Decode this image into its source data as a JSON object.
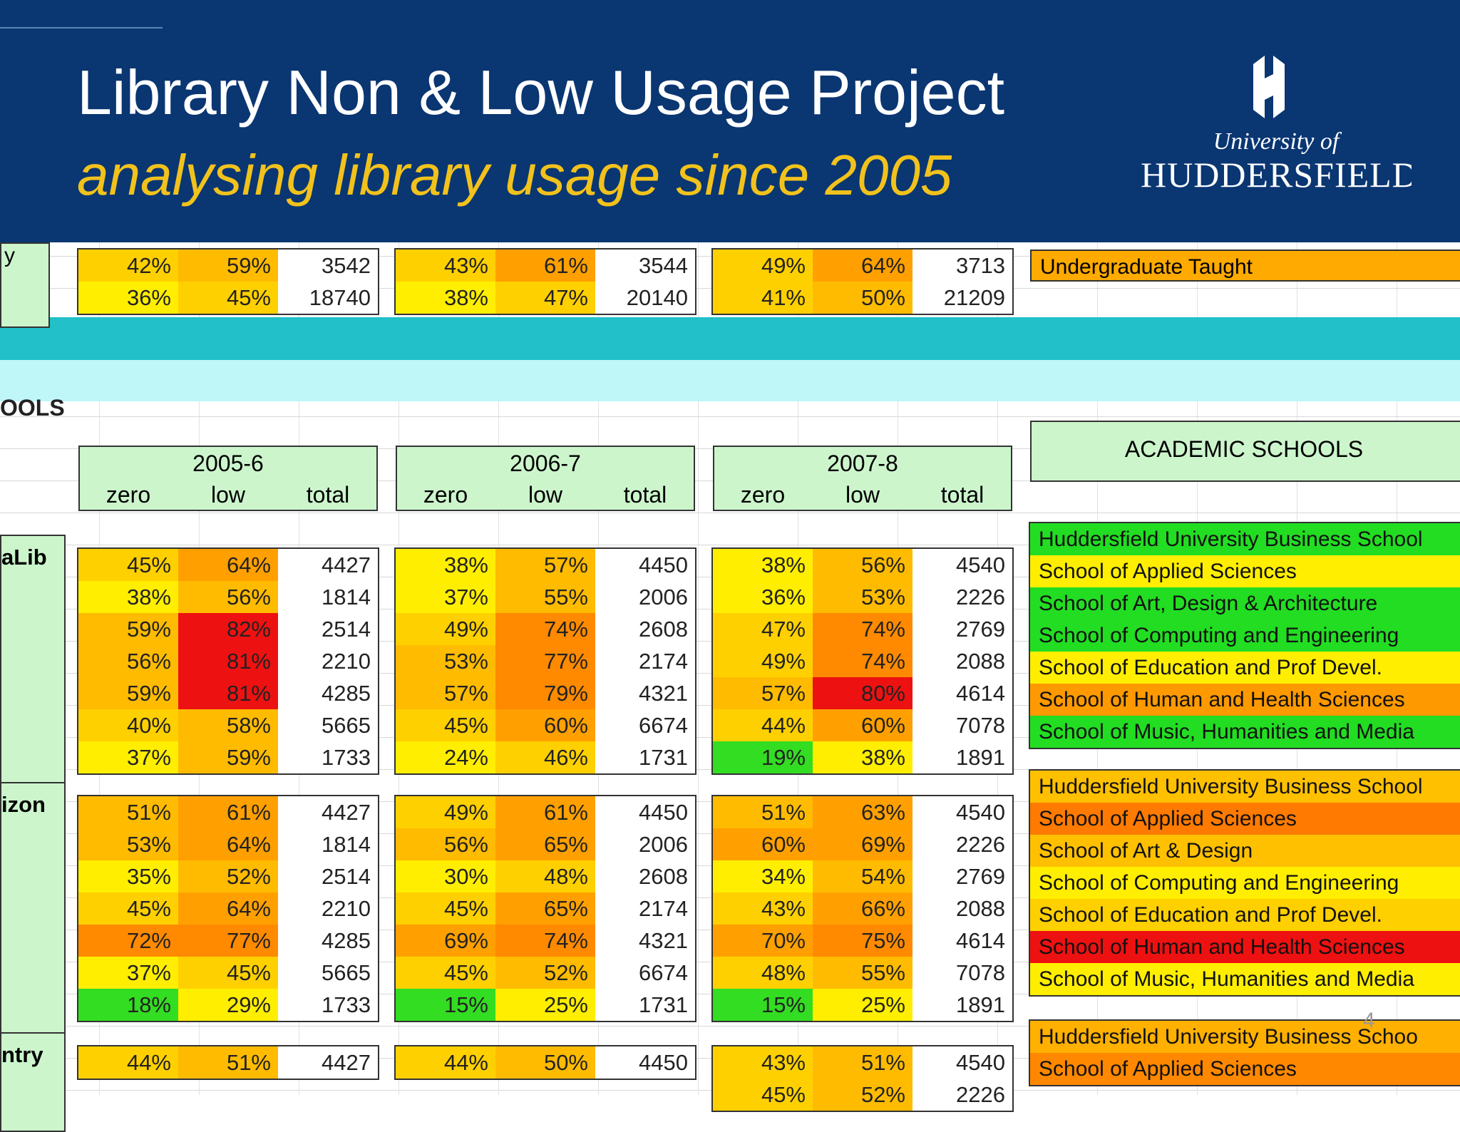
{
  "header": {
    "title": "Library Non & Low Usage Project",
    "subtitle": "analysing library usage since 2005",
    "logo": {
      "line1": "University of",
      "line2": "HUDDERSFIELD"
    }
  },
  "slide_number": "4",
  "top_rows": {
    "side_label": "y",
    "blocks": [
      [
        [
          "42%",
          "59%",
          "3542"
        ],
        [
          "36%",
          "45%",
          "18740"
        ]
      ],
      [
        [
          "43%",
          "61%",
          "3544"
        ],
        [
          "38%",
          "47%",
          "20140"
        ]
      ],
      [
        [
          "49%",
          "64%",
          "3713"
        ],
        [
          "41%",
          "50%",
          "21209"
        ]
      ]
    ],
    "labels": [
      {
        "name": "Undergraduate Taught",
        "color": "#ffaa00"
      }
    ]
  },
  "section_label": "OOLS",
  "years": [
    "2005-6",
    "2006-7",
    "2007-8"
  ],
  "columns": [
    "zero",
    "low",
    "total"
  ],
  "schools_header": "ACADEMIC SCHOOLS",
  "groups": [
    {
      "label": "aLib",
      "blocks": [
        [
          [
            "45%",
            "64%",
            "4427"
          ],
          [
            "38%",
            "56%",
            "1814"
          ],
          [
            "59%",
            "82%",
            "2514"
          ],
          [
            "56%",
            "81%",
            "2210"
          ],
          [
            "59%",
            "81%",
            "4285"
          ],
          [
            "40%",
            "58%",
            "5665"
          ],
          [
            "37%",
            "59%",
            "1733"
          ]
        ],
        [
          [
            "38%",
            "57%",
            "4450"
          ],
          [
            "37%",
            "55%",
            "2006"
          ],
          [
            "49%",
            "74%",
            "2608"
          ],
          [
            "53%",
            "77%",
            "2174"
          ],
          [
            "57%",
            "79%",
            "4321"
          ],
          [
            "45%",
            "60%",
            "6674"
          ],
          [
            "24%",
            "46%",
            "1731"
          ]
        ],
        [
          [
            "38%",
            "56%",
            "4540"
          ],
          [
            "36%",
            "53%",
            "2226"
          ],
          [
            "47%",
            "74%",
            "2769"
          ],
          [
            "49%",
            "74%",
            "2088"
          ],
          [
            "57%",
            "80%",
            "4614"
          ],
          [
            "44%",
            "60%",
            "7078"
          ],
          [
            "19%",
            "38%",
            "1891"
          ]
        ]
      ],
      "schools": [
        {
          "name": "Huddersfield University Business School",
          "color": "#22dd22"
        },
        {
          "name": "School of Applied Sciences",
          "color": "#ffee00"
        },
        {
          "name": "School of Art, Design & Architecture",
          "color": "#22dd22"
        },
        {
          "name": "School of Computing and Engineering",
          "color": "#22dd22"
        },
        {
          "name": "School of Education and Prof Devel.",
          "color": "#ffee00"
        },
        {
          "name": "School of Human and Health Sciences",
          "color": "#ff9900"
        },
        {
          "name": "School of Music, Humanities and Media",
          "color": "#22dd22"
        }
      ]
    },
    {
      "label": "izon",
      "blocks": [
        [
          [
            "51%",
            "61%",
            "4427"
          ],
          [
            "53%",
            "64%",
            "1814"
          ],
          [
            "35%",
            "52%",
            "2514"
          ],
          [
            "45%",
            "64%",
            "2210"
          ],
          [
            "72%",
            "77%",
            "4285"
          ],
          [
            "37%",
            "45%",
            "5665"
          ],
          [
            "18%",
            "29%",
            "1733"
          ]
        ],
        [
          [
            "49%",
            "61%",
            "4450"
          ],
          [
            "56%",
            "65%",
            "2006"
          ],
          [
            "30%",
            "48%",
            "2608"
          ],
          [
            "45%",
            "65%",
            "2174"
          ],
          [
            "69%",
            "74%",
            "4321"
          ],
          [
            "45%",
            "52%",
            "6674"
          ],
          [
            "15%",
            "25%",
            "1731"
          ]
        ],
        [
          [
            "51%",
            "63%",
            "4540"
          ],
          [
            "60%",
            "69%",
            "2226"
          ],
          [
            "34%",
            "54%",
            "2769"
          ],
          [
            "43%",
            "66%",
            "2088"
          ],
          [
            "70%",
            "75%",
            "4614"
          ],
          [
            "48%",
            "55%",
            "7078"
          ],
          [
            "15%",
            "25%",
            "1891"
          ]
        ]
      ],
      "schools": [
        {
          "name": "Huddersfield University Business School",
          "color": "#ffc000"
        },
        {
          "name": "School of Applied Sciences",
          "color": "#ff7a00"
        },
        {
          "name": "School of Art & Design",
          "color": "#ffc000"
        },
        {
          "name": "School of Computing and Engineering",
          "color": "#ffee00"
        },
        {
          "name": "School of Education and Prof Devel.",
          "color": "#ffd000"
        },
        {
          "name": "School of Human and Health Sciences",
          "color": "#ee1111"
        },
        {
          "name": "School of Music, Humanities and Media",
          "color": "#ffee00"
        }
      ]
    },
    {
      "label": "ntry",
      "blocks": [
        [
          [
            "44%",
            "51%",
            "4427"
          ]
        ],
        [
          [
            "44%",
            "50%",
            "4450"
          ]
        ],
        [
          [
            "43%",
            "51%",
            "4540"
          ],
          [
            "45%",
            "52%",
            "2226"
          ]
        ]
      ],
      "schools": [
        {
          "name": "Huddersfield University Business Schoo",
          "color": "#ffb000"
        },
        {
          "name": "School of Applied Sciences",
          "color": "#ff8800"
        }
      ]
    }
  ]
}
